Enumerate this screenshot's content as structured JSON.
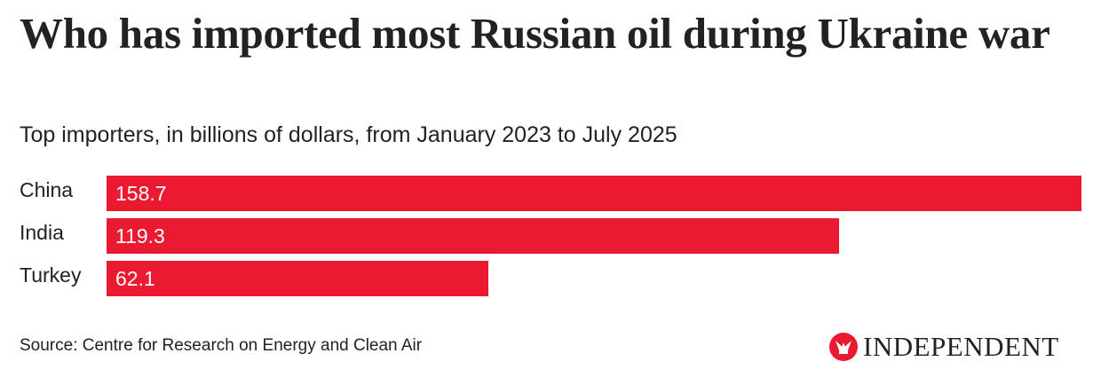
{
  "title": "Who has imported most Russian oil during Ukraine war",
  "subtitle": "Top importers, in billions of dollars, from January 2023 to July 2025",
  "source": "Source: Centre for Research on Energy and Clean Air",
  "logo": "INDEPENDENT",
  "colors": {
    "bar": "#ec1a30",
    "text": "#222222"
  },
  "chart_data": {
    "type": "bar",
    "orientation": "horizontal",
    "title": "Who has imported most Russian oil during Ukraine war",
    "subtitle": "Top importers, in billions of dollars, from January 2023 to July 2025",
    "categories": [
      "China",
      "India",
      "Turkey"
    ],
    "values": [
      158.7,
      119.3,
      62.1
    ],
    "value_labels": [
      "158.7",
      "119.3",
      "62.1"
    ],
    "xlabel": "",
    "ylabel": "",
    "xlim": [
      0,
      158.7
    ],
    "grid": false
  }
}
